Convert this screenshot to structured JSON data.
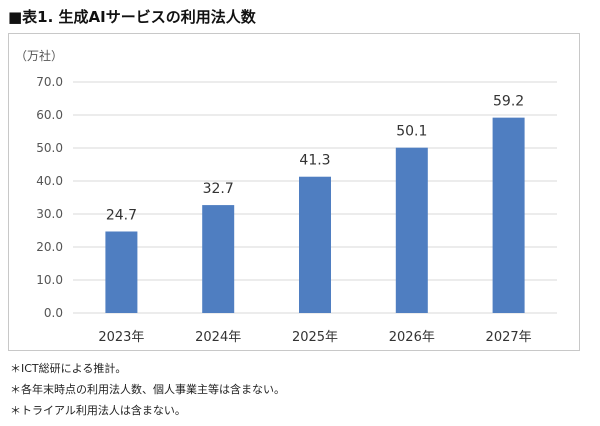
{
  "title": "■表1. 生成AIサービスの利用法人数",
  "notes": [
    "＊ICT総研による推計。",
    "＊各年末時点の利用法人数、個人事業主等は含まない。",
    "＊トライアル利用法人は含まない。"
  ],
  "colors": {
    "bar": "#4f7ec1",
    "grid": "#d9d9d9",
    "frame": "#c8c8c8"
  },
  "chart_data": {
    "type": "bar",
    "title": "",
    "unit_label": "（万社）",
    "xlabel": "",
    "ylabel": "",
    "categories": [
      "2023年",
      "2024年",
      "2025年",
      "2026年",
      "2027年"
    ],
    "values": [
      24.7,
      32.7,
      41.3,
      50.1,
      59.2
    ],
    "data_labels": [
      "24.7",
      "32.7",
      "41.3",
      "50.1",
      "59.2"
    ],
    "ylim": [
      0,
      70
    ],
    "yticks": [
      "0.0",
      "10.0",
      "20.0",
      "30.0",
      "40.0",
      "50.0",
      "60.0",
      "70.0"
    ],
    "ytick_values": [
      0,
      10,
      20,
      30,
      40,
      50,
      60,
      70
    ],
    "grid": true,
    "legend": "none"
  }
}
